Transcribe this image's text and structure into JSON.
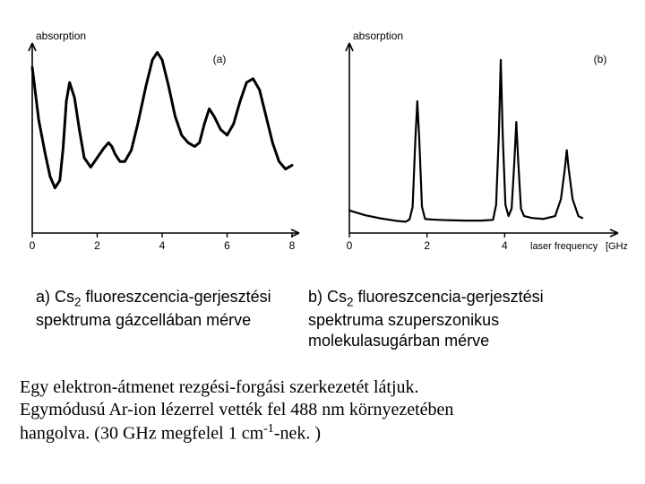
{
  "chart_a": {
    "type": "line",
    "ylabel": "absorption",
    "panel_label": "(a)",
    "xlim": [
      0,
      8
    ],
    "xticks": [
      0,
      2,
      4,
      6,
      8
    ],
    "data": [
      [
        0.0,
        0.88
      ],
      [
        0.2,
        0.6
      ],
      [
        0.4,
        0.42
      ],
      [
        0.55,
        0.3
      ],
      [
        0.7,
        0.24
      ],
      [
        0.85,
        0.28
      ],
      [
        0.95,
        0.45
      ],
      [
        1.05,
        0.7
      ],
      [
        1.15,
        0.8
      ],
      [
        1.3,
        0.72
      ],
      [
        1.45,
        0.55
      ],
      [
        1.6,
        0.4
      ],
      [
        1.8,
        0.35
      ],
      [
        2.0,
        0.4
      ],
      [
        2.2,
        0.45
      ],
      [
        2.35,
        0.48
      ],
      [
        2.45,
        0.46
      ],
      [
        2.55,
        0.42
      ],
      [
        2.7,
        0.38
      ],
      [
        2.85,
        0.38
      ],
      [
        3.05,
        0.44
      ],
      [
        3.25,
        0.58
      ],
      [
        3.5,
        0.78
      ],
      [
        3.7,
        0.92
      ],
      [
        3.85,
        0.96
      ],
      [
        4.0,
        0.92
      ],
      [
        4.2,
        0.78
      ],
      [
        4.4,
        0.62
      ],
      [
        4.6,
        0.52
      ],
      [
        4.8,
        0.48
      ],
      [
        5.0,
        0.46
      ],
      [
        5.15,
        0.48
      ],
      [
        5.3,
        0.58
      ],
      [
        5.45,
        0.66
      ],
      [
        5.6,
        0.62
      ],
      [
        5.8,
        0.55
      ],
      [
        6.0,
        0.52
      ],
      [
        6.2,
        0.58
      ],
      [
        6.4,
        0.7
      ],
      [
        6.6,
        0.8
      ],
      [
        6.8,
        0.82
      ],
      [
        7.0,
        0.76
      ],
      [
        7.2,
        0.62
      ],
      [
        7.4,
        0.48
      ],
      [
        7.6,
        0.38
      ],
      [
        7.8,
        0.34
      ],
      [
        8.0,
        0.36
      ]
    ],
    "line_width": 3.0,
    "stroke": "#000000",
    "axis_stroke": "#000000",
    "font_family": "Arial",
    "label_fontsize": 12,
    "tick_len": 5
  },
  "chart_b": {
    "type": "line",
    "ylabel": "absorption",
    "xlabel_right": "laser frequency",
    "xunit_right": "[GHz]",
    "panel_label": "(b)",
    "xlim": [
      0,
      6
    ],
    "xticks": [
      0,
      2,
      4
    ],
    "data": [
      [
        0.0,
        0.12
      ],
      [
        0.4,
        0.095
      ],
      [
        0.8,
        0.078
      ],
      [
        1.2,
        0.065
      ],
      [
        1.45,
        0.06
      ],
      [
        1.55,
        0.072
      ],
      [
        1.63,
        0.14
      ],
      [
        1.7,
        0.5
      ],
      [
        1.75,
        0.7
      ],
      [
        1.8,
        0.5
      ],
      [
        1.87,
        0.14
      ],
      [
        1.95,
        0.075
      ],
      [
        2.1,
        0.072
      ],
      [
        2.3,
        0.07
      ],
      [
        2.6,
        0.068
      ],
      [
        3.0,
        0.066
      ],
      [
        3.4,
        0.066
      ],
      [
        3.7,
        0.07
      ],
      [
        3.78,
        0.15
      ],
      [
        3.85,
        0.52
      ],
      [
        3.9,
        0.92
      ],
      [
        3.95,
        0.52
      ],
      [
        4.02,
        0.15
      ],
      [
        4.1,
        0.09
      ],
      [
        4.18,
        0.13
      ],
      [
        4.25,
        0.38
      ],
      [
        4.3,
        0.59
      ],
      [
        4.35,
        0.38
      ],
      [
        4.42,
        0.13
      ],
      [
        4.5,
        0.09
      ],
      [
        4.7,
        0.08
      ],
      [
        5.0,
        0.075
      ],
      [
        5.3,
        0.09
      ],
      [
        5.45,
        0.18
      ],
      [
        5.55,
        0.34
      ],
      [
        5.6,
        0.44
      ],
      [
        5.65,
        0.34
      ],
      [
        5.75,
        0.18
      ],
      [
        5.9,
        0.09
      ],
      [
        6.0,
        0.08
      ]
    ],
    "line_width": 2.2,
    "stroke": "#000000",
    "axis_stroke": "#000000",
    "font_family": "Arial",
    "label_fontsize": 12,
    "tick_len": 5
  },
  "captions": {
    "a_pre": "a) Cs",
    "a_sub": "2",
    "a_post": " fluoreszcencia-gerjesztési spektruma gázcellában mérve",
    "b_pre": "b) Cs",
    "b_sub": "2",
    "b_post": " fluoreszcencia-gerjesztési spektruma szuperszonikus molekulasugárban mérve"
  },
  "paragraph": {
    "line1": "Egy elektron-átmenet rezgési-forgási szerkezetét látjuk.",
    "line2": "Egymódusú Ar-ion lézerrel vették fel 488 nm környezetében",
    "line3_pre": "hangolva. (30 GHz megfelel 1 cm",
    "line3_sup": "-1",
    "line3_post": "-nek. )"
  },
  "caption_fontsize": 18,
  "paragraph_fontsize": 20,
  "paragraph_fontfamily": "Times New Roman"
}
